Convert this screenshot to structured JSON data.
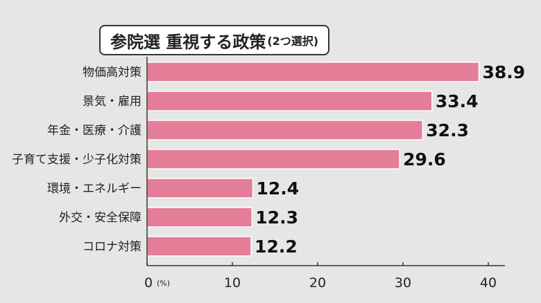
{
  "chart_data": {
    "type": "bar",
    "orientation": "horizontal",
    "title": "参院選 重視する政策",
    "subtitle": "(2つ選択)",
    "unit_label": "(%)",
    "categories": [
      "物価高対策",
      "景気・雇用",
      "年金・医療・介護",
      "子育て支援・少子化対策",
      "環境・エネルギー",
      "外交・安全保障",
      "コロナ対策"
    ],
    "values": [
      38.9,
      33.4,
      32.3,
      29.6,
      12.4,
      12.3,
      12.2
    ],
    "value_labels": [
      "38.9",
      "33.4",
      "32.3",
      "29.6",
      "12.4",
      "12.3",
      "12.2"
    ],
    "x_ticks": [
      "0",
      "10",
      "20",
      "30",
      "40"
    ],
    "xlim": [
      0,
      40
    ],
    "grid": false,
    "bar_color": "#e47e98",
    "background_color": "#e6e6e6"
  }
}
